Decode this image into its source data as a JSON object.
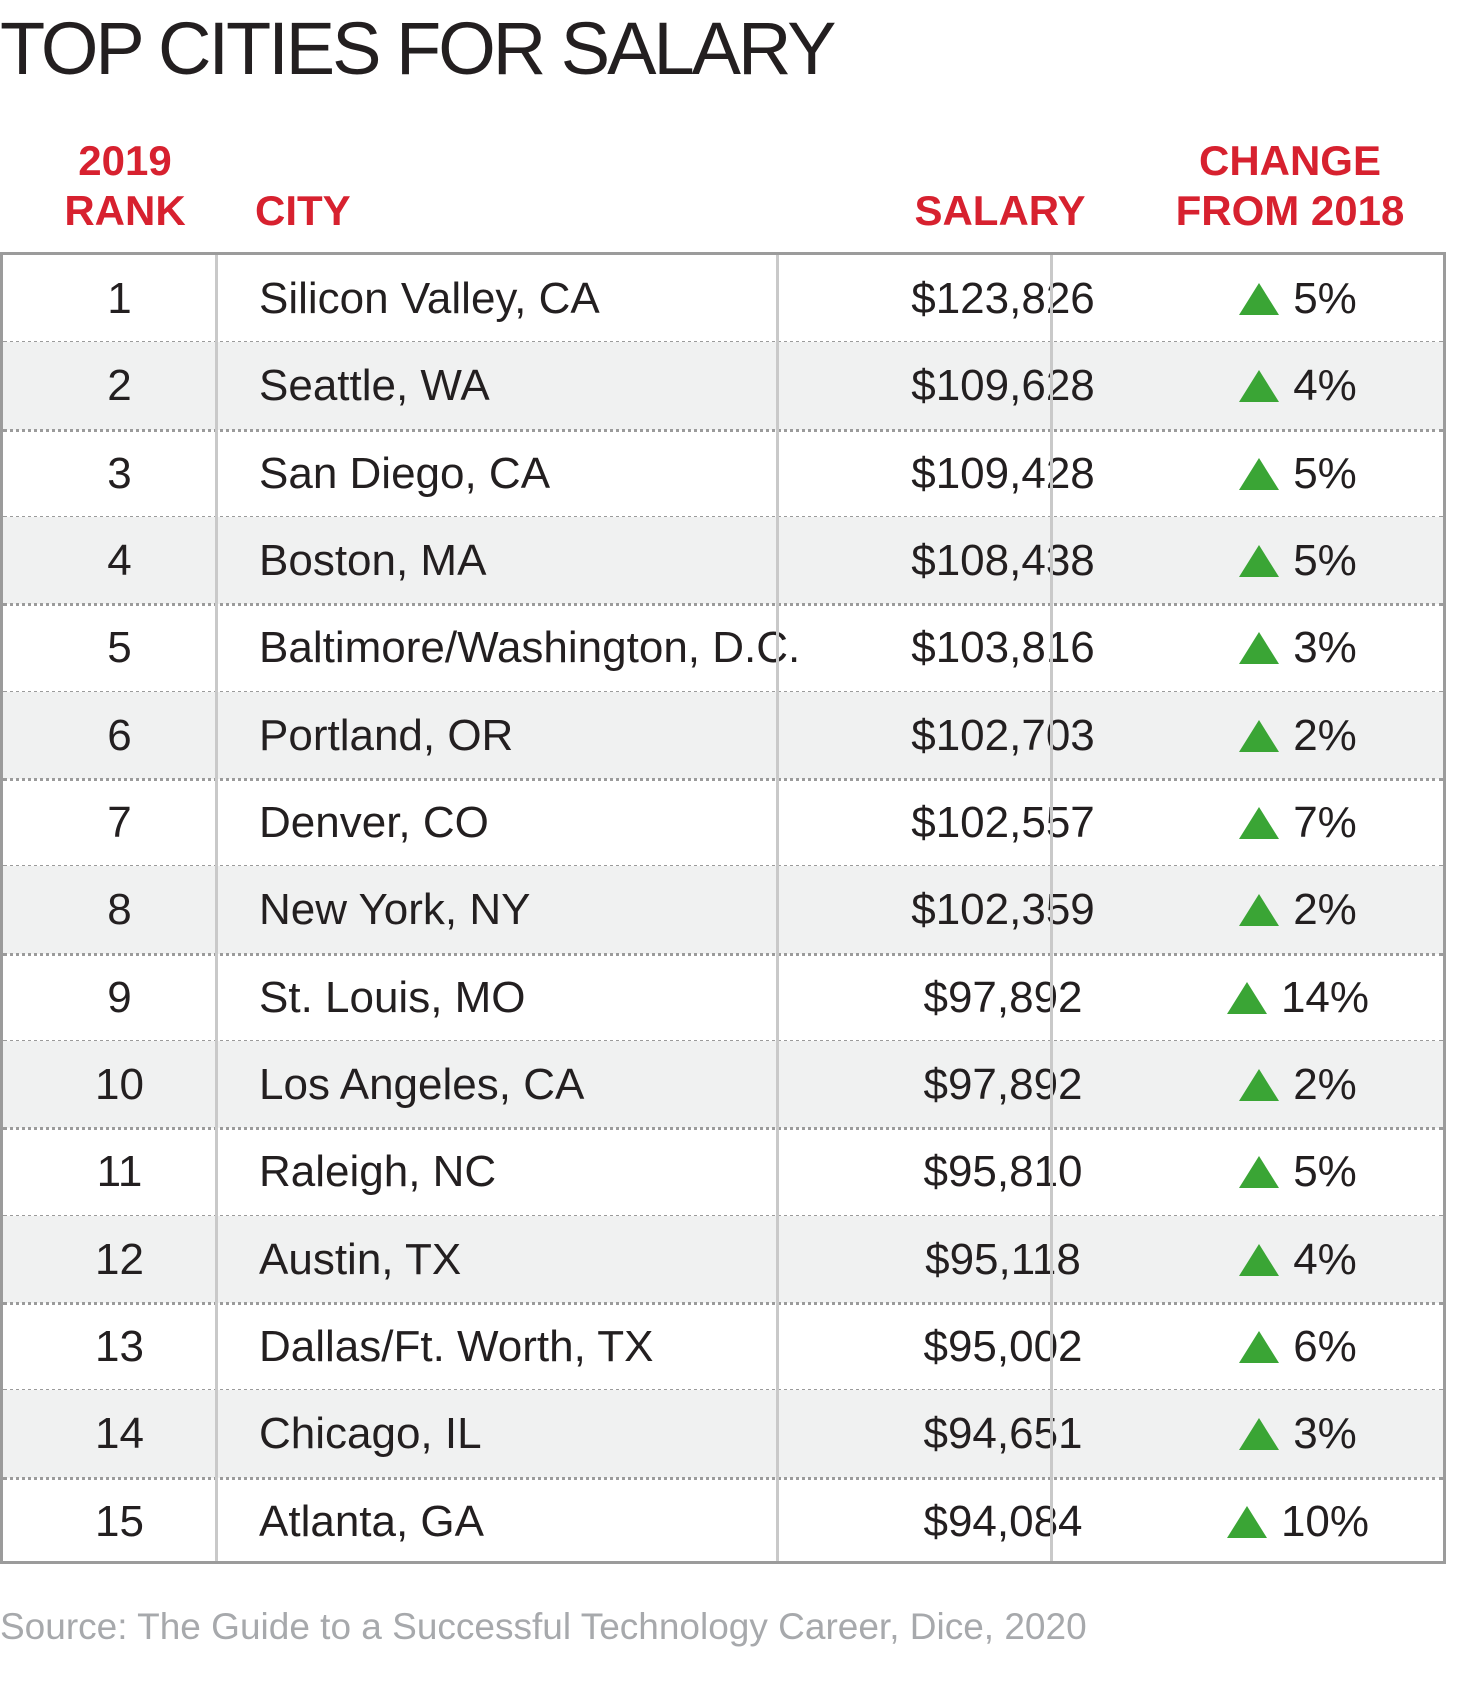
{
  "title": "TOP CITIES FOR SALARY",
  "columns": {
    "rank_line1": "2019",
    "rank_line2": "RANK",
    "city": "CITY",
    "salary": "SALARY",
    "change_line1": "CHANGE",
    "change_line2": "FROM 2018"
  },
  "source": "Source: The Guide to a Successful Technology Career, Dice, 2020",
  "colors": {
    "header_red": "#d7212f",
    "up_green": "#3aa535",
    "alt_row": "#f0f1f1"
  },
  "icons": {
    "change_indicator": "up-triangle-icon"
  },
  "chart_data": {
    "type": "table",
    "title": "TOP CITIES FOR SALARY",
    "columns": [
      "2019 RANK",
      "CITY",
      "SALARY",
      "CHANGE FROM 2018"
    ],
    "rows": [
      {
        "rank": "1",
        "city": "Silicon Valley, CA",
        "salary": "$123,826",
        "change": "5%"
      },
      {
        "rank": "2",
        "city": "Seattle, WA",
        "salary": "$109,628",
        "change": "4%"
      },
      {
        "rank": "3",
        "city": "San Diego, CA",
        "salary": "$109,428",
        "change": "5%"
      },
      {
        "rank": "4",
        "city": "Boston, MA",
        "salary": "$108,438",
        "change": "5%"
      },
      {
        "rank": "5",
        "city": "Baltimore/Washington, D.C.",
        "salary": "$103,816",
        "change": "3%"
      },
      {
        "rank": "6",
        "city": "Portland, OR",
        "salary": "$102,703",
        "change": "2%"
      },
      {
        "rank": "7",
        "city": "Denver, CO",
        "salary": "$102,557",
        "change": "7%"
      },
      {
        "rank": "8",
        "city": "New York, NY",
        "salary": "$102,359",
        "change": "2%"
      },
      {
        "rank": "9",
        "city": "St. Louis, MO",
        "salary": "$97,892",
        "change": "14%"
      },
      {
        "rank": "10",
        "city": "Los Angeles, CA",
        "salary": "$97,892",
        "change": "2%"
      },
      {
        "rank": "11",
        "city": "Raleigh, NC",
        "salary": "$95,810",
        "change": "5%"
      },
      {
        "rank": "12",
        "city": "Austin, TX",
        "salary": "$95,118",
        "change": "4%"
      },
      {
        "rank": "13",
        "city": "Dallas/Ft. Worth, TX",
        "salary": "$95,002",
        "change": "6%"
      },
      {
        "rank": "14",
        "city": "Chicago, IL",
        "salary": "$94,651",
        "change": "3%"
      },
      {
        "rank": "15",
        "city": "Atlanta, GA",
        "salary": "$94,084",
        "change": "10%"
      }
    ]
  }
}
